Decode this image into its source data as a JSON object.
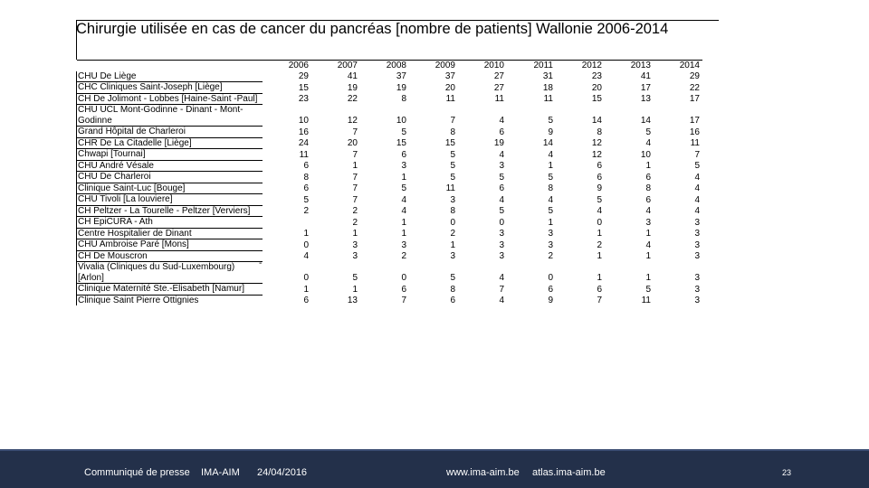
{
  "title": "Chirurgie utilisée en cas de cancer du pancréas [nombre de patients] Wallonie 2006-2014",
  "table": {
    "years": [
      "2006",
      "2007",
      "2008",
      "2009",
      "2010",
      "2011",
      "2012",
      "2013",
      "2014"
    ],
    "rows": [
      {
        "name": "CHU De Liège",
        "values": [
          "29",
          "41",
          "37",
          "37",
          "27",
          "31",
          "23",
          "41",
          "29"
        ]
      },
      {
        "name": "CHC Cliniques Saint-Joseph [Liège]",
        "values": [
          "15",
          "19",
          "19",
          "20",
          "27",
          "18",
          "20",
          "17",
          "22"
        ]
      },
      {
        "name": "CH De Jolimont - Lobbes [Haine-Saint -Paul]",
        "values": [
          "23",
          "22",
          "8",
          "11",
          "11",
          "11",
          "15",
          "13",
          "17"
        ]
      },
      {
        "name": "CHU UCL Mont-Godinne - Dinant - Mont-Godinne",
        "values": [
          "10",
          "12",
          "10",
          "7",
          "4",
          "5",
          "14",
          "14",
          "17"
        ]
      },
      {
        "name": "Grand Hôpital de Charleroi",
        "values": [
          "16",
          "7",
          "5",
          "8",
          "6",
          "9",
          "8",
          "5",
          "16"
        ]
      },
      {
        "name": "CHR De La Citadelle [Liège]",
        "values": [
          "24",
          "20",
          "15",
          "15",
          "19",
          "14",
          "12",
          "4",
          "11"
        ]
      },
      {
        "name": "Chwapi [Tournai]",
        "values": [
          "11",
          "7",
          "6",
          "5",
          "4",
          "4",
          "12",
          "10",
          "7"
        ]
      },
      {
        "name": "CHU André Vésale",
        "values": [
          "6",
          "1",
          "3",
          "5",
          "3",
          "1",
          "6",
          "1",
          "5"
        ]
      },
      {
        "name": "CHU De Charleroi",
        "values": [
          "8",
          "7",
          "1",
          "5",
          "5",
          "5",
          "6",
          "6",
          "4"
        ]
      },
      {
        "name": "Clinique Saint-Luc [Bouge]",
        "values": [
          "6",
          "7",
          "5",
          "11",
          "6",
          "8",
          "9",
          "8",
          "4"
        ]
      },
      {
        "name": "CHU Tivoli [La louviere]",
        "values": [
          "5",
          "7",
          "4",
          "3",
          "4",
          "4",
          "5",
          "6",
          "4"
        ]
      },
      {
        "name": "CH  Peltzer - La Tourelle - Peltzer [Verviers]",
        "values": [
          "2",
          "2",
          "4",
          "8",
          "5",
          "5",
          "4",
          "4",
          "4"
        ]
      },
      {
        "name": "CH EpiCURA - Ath",
        "values": [
          "",
          "2",
          "1",
          "0",
          "0",
          "1",
          "0",
          "3",
          "3"
        ]
      },
      {
        "name": "Centre Hospitalier de Dinant",
        "values": [
          "1",
          "1",
          "1",
          "2",
          "3",
          "3",
          "1",
          "1",
          "3"
        ]
      },
      {
        "name": "CHU Ambroise Paré [Mons]",
        "values": [
          "0",
          "3",
          "3",
          "1",
          "3",
          "3",
          "2",
          "4",
          "3"
        ]
      },
      {
        "name": "CH De Mouscron",
        "values": [
          "4",
          "3",
          "2",
          "3",
          "3",
          "2",
          "1",
          "1",
          "3"
        ]
      },
      {
        "name": "Vivalia (Cliniques du Sud-Luxembourg) [Arlon]",
        "values": [
          "0",
          "5",
          "0",
          "5",
          "4",
          "0",
          "1",
          "1",
          "3"
        ]
      },
      {
        "name": "Clinique Maternité Ste.-Elisabeth [Namur]",
        "values": [
          "1",
          "1",
          "6",
          "8",
          "7",
          "6",
          "6",
          "5",
          "3"
        ]
      },
      {
        "name": "Clinique Saint Pierre Ottignies",
        "values": [
          "6",
          "13",
          "7",
          "6",
          "4",
          "9",
          "7",
          "11",
          "3"
        ]
      }
    ],
    "stray_mark": "-"
  },
  "footer": {
    "press": "Communiqué de presse",
    "org": "IMA-AIM",
    "date": "24/04/2016",
    "site1": "www.ima-aim.be",
    "site2": "atlas.ima-aim.be",
    "page": "23"
  },
  "colors": {
    "footer_bg": "#23304a",
    "footer_accent": "#3b4d73",
    "footer_text": "#ffffff"
  }
}
